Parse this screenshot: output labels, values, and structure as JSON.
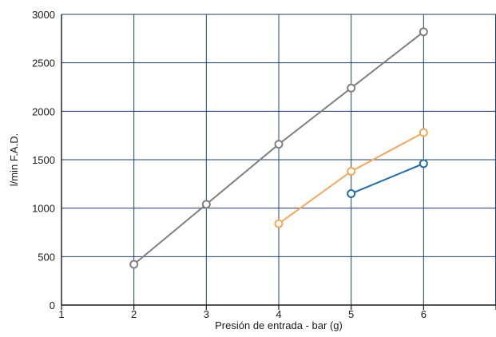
{
  "chart_data": {
    "type": "line",
    "title": "",
    "xlabel": "Presión de entrada - bar (g)",
    "ylabel": "l/min F.A.D.",
    "xlim": [
      1,
      7
    ],
    "ylim": [
      0,
      3000
    ],
    "xticks": [
      1,
      2,
      3,
      4,
      5,
      6
    ],
    "xtick_labels": [
      "1",
      "2",
      "3",
      "4",
      "5",
      "6"
    ],
    "yticks": [
      0,
      500,
      1000,
      1500,
      2000,
      2500,
      3000
    ],
    "ytick_labels": [
      "0",
      "500",
      "1000",
      "1500",
      "2000",
      "2500",
      "3000"
    ],
    "grid": true,
    "grid_color": "#1f3f6a",
    "series": [
      {
        "color": "#808080",
        "x": [
          2,
          3,
          4,
          5,
          6
        ],
        "y": [
          420,
          1040,
          1660,
          2240,
          2820
        ]
      },
      {
        "color": "#f5a85a",
        "x": [
          4,
          5,
          6
        ],
        "y": [
          840,
          1380,
          1780
        ]
      },
      {
        "color": "#1f6fa6",
        "x": [
          5,
          6
        ],
        "y": [
          1150,
          1460
        ]
      }
    ]
  }
}
